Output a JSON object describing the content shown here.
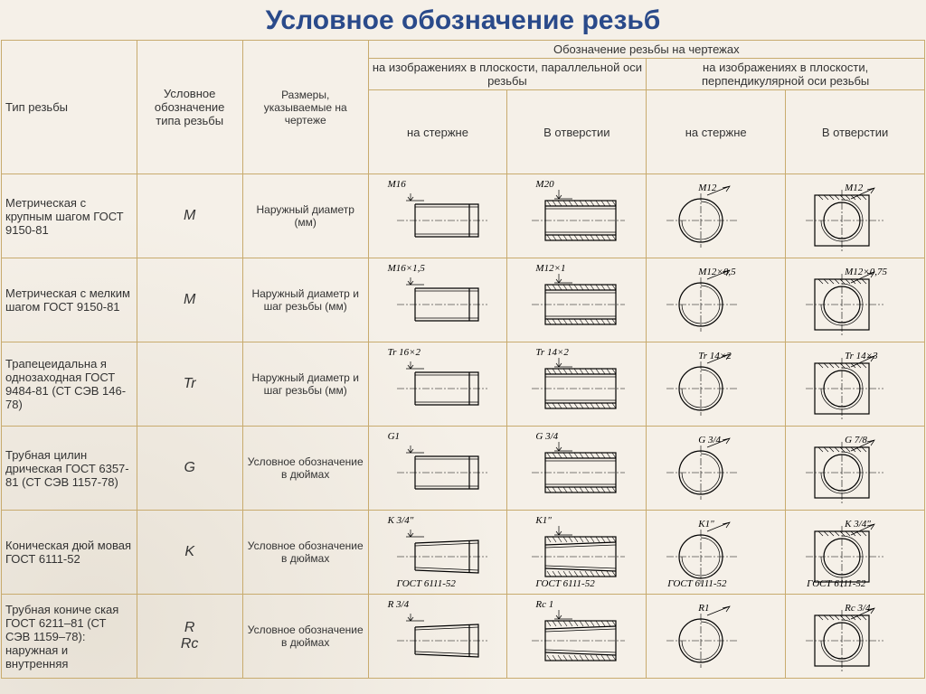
{
  "title": "Условное обозначение резьб",
  "header": {
    "col1": "Тип резьбы",
    "col2": "Условное обозначение типа резьбы",
    "col3": "Размеры, указываемые на чертеже",
    "group_top": "Обозначение резьбы на чертежах",
    "group_left": "на изображениях в плоскости, параллельной оси резьбы",
    "group_right": "на изображениях в плоскости, перпендикулярной оси резьбы",
    "sub_rod": "на стержне",
    "sub_hole": "В отверстии"
  },
  "rows": [
    {
      "type": "Метрическая с крупным шагом ГОСТ 9150-81",
      "symbol": "M",
      "size": "Наружный диаметр (мм)",
      "labels": [
        "M16",
        "M20",
        "M12",
        "M12"
      ]
    },
    {
      "type": "Метрическая с мелким шагом ГОСТ 9150-81",
      "symbol": "M",
      "size": "Наружный диаметр и шаг резьбы (мм)",
      "labels": [
        "M16×1,5",
        "M12×1",
        "M12×0,5",
        "M12×0,75"
      ]
    },
    {
      "type": "Трапецеидальна я однозаходная ГОСТ 9484-81 (СТ СЭВ 146-78)",
      "symbol": "Tr",
      "size": "Наружный диаметр и шаг резьбы (мм)",
      "labels": [
        "Tr 16×2",
        "Tr 14×2",
        "Tr 14×2",
        "Tr 14×3"
      ]
    },
    {
      "type": "Трубная цилин дрическая ГОСТ 6357-81 (СТ СЭВ 1157-78)",
      "symbol": "G",
      "size": "Условное обозначение в дюймах",
      "labels": [
        "G1",
        "G 3/4",
        "G 3/4",
        "G 7/8"
      ]
    },
    {
      "type": "Коническая дюй мовая ГОСТ 6111-52",
      "symbol": "K",
      "size": "Условное обозначение в дюймах",
      "labels": [
        "K 3/4\"\nГОСТ 6111-52",
        "K1\"\nГОСТ 6111-52",
        "K1\"\nГОСТ 6111-52",
        "K 3/4\"\nГОСТ 6111-52"
      ]
    },
    {
      "type": "Трубная кониче ская ГОСТ 6211–81 (СТ СЭВ 1159–78): наружная и внутренняя",
      "symbol": "R\nRc",
      "size": "Условное обозначение в дюймах",
      "labels": [
        "R 3/4",
        "Rc 1",
        "R1",
        "Rc 3/4"
      ]
    }
  ],
  "styling": {
    "title_color": "#2a4a8a",
    "border_color": "#c8ab6e",
    "background": "#f5f0e8",
    "font_family": "Arial",
    "title_fontsize": 30,
    "cell_fontsize": 13,
    "drawing_stroke": "#000000"
  }
}
